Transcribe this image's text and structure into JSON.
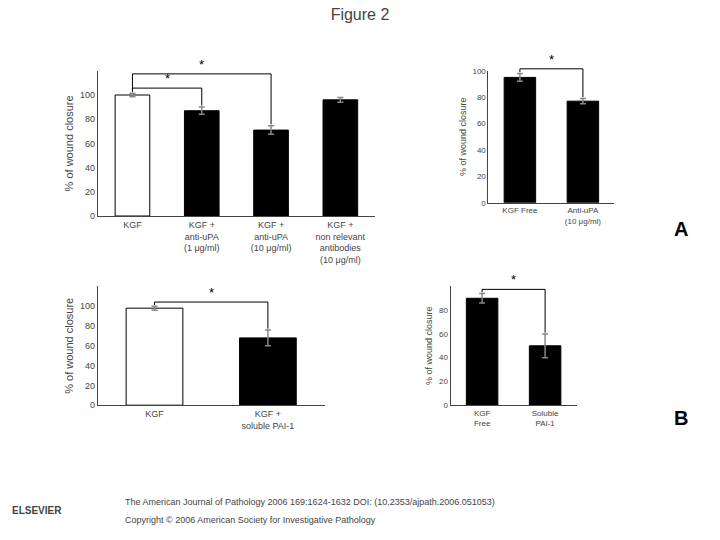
{
  "title": "Figure 2",
  "annotations": [
    "The American Journal of Pathology 2006 169:1624-1632 DOI: (10.2353/ajpath.2006.051053)",
    "Copyright © 2006 American Society for Investigative Pathology",
    "ELSEVIER"
  ],
  "chart_data": [
    {
      "type": "bar",
      "categories": [
        "KGF",
        "KGF +\nanti-uPA\n(1 μg/ml)",
        "KGF +\nanti-uPA\n(10 μg/ml)",
        "KGF +\nnon relevant\nantibodies\n(10 μg/ml)"
      ],
      "values": [
        100,
        87,
        71,
        96
      ],
      "errors": [
        1.5,
        3,
        3.5,
        2
      ],
      "colors": [
        "#ffffff",
        "#000000",
        "#000000",
        "#000000"
      ],
      "ylabel": "% of wound closure",
      "ylim": [
        0,
        120
      ],
      "yticks": [
        0,
        20,
        40,
        60,
        80,
        100
      ],
      "grid": false,
      "annotations": [
        {
          "text": "*",
          "from": 0,
          "to": 1
        },
        {
          "text": "*",
          "from": 0,
          "to": 2
        },
        {
          "text": "A"
        }
      ]
    },
    {
      "type": "bar",
      "categories": [
        "KGF Free",
        "Anti-uPA\n(10 μg/ml)"
      ],
      "values": [
        95,
        77
      ],
      "errors": [
        3,
        2
      ],
      "colors": [
        "#000000",
        "#000000"
      ],
      "ylabel": "% of wound closure",
      "ylim": [
        0,
        100
      ],
      "yticks": [
        0,
        20,
        40,
        60,
        80,
        100
      ],
      "grid": false,
      "annotations": [
        {
          "text": "*",
          "from": 0,
          "to": 1
        }
      ]
    },
    {
      "type": "bar",
      "categories": [
        "KGF",
        "KGF +\nsoluble PAI-1"
      ],
      "values": [
        98,
        68
      ],
      "errors": [
        2,
        8
      ],
      "colors": [
        "#ffffff",
        "#000000"
      ],
      "ylabel": "% of wound closure",
      "ylim": [
        0,
        120
      ],
      "yticks": [
        0,
        20,
        40,
        60,
        80,
        100
      ],
      "grid": false,
      "annotations": [
        {
          "text": "*",
          "from": 0,
          "to": 1
        },
        {
          "text": "B"
        }
      ]
    },
    {
      "type": "bar",
      "categories": [
        "KGF\nFree",
        "Soluble\nPAI-1"
      ],
      "values": [
        90,
        50
      ],
      "errors": [
        4,
        10
      ],
      "colors": [
        "#000000",
        "#000000"
      ],
      "ylabel": "% of wound closure",
      "ylim": [
        0,
        100
      ],
      "yticks": [
        0,
        20,
        40,
        60,
        80
      ],
      "grid": false,
      "annotations": [
        {
          "text": "*",
          "from": 0,
          "to": 1
        }
      ]
    }
  ]
}
